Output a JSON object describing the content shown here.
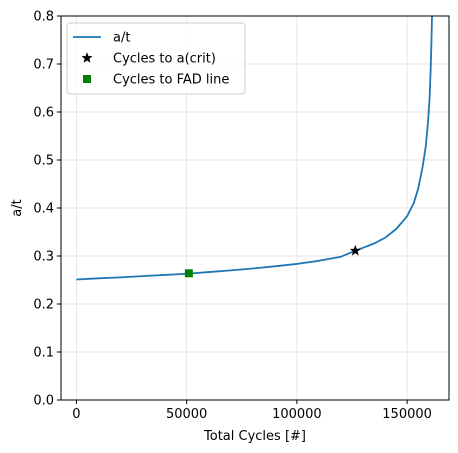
{
  "chart_data": {
    "type": "line",
    "title": "",
    "xlabel": "Total Cycles [#]",
    "ylabel": "a/t",
    "xlim": [
      -7000,
      169000
    ],
    "ylim": [
      0.0,
      0.8
    ],
    "xticks": [
      0,
      50000,
      100000,
      150000
    ],
    "xtick_labels": [
      "0",
      "50000",
      "100000",
      "150000"
    ],
    "yticks": [
      0.0,
      0.1,
      0.2,
      0.3,
      0.4,
      0.5,
      0.6,
      0.7,
      0.8
    ],
    "ytick_labels": [
      "0.0",
      "0.1",
      "0.2",
      "0.3",
      "0.4",
      "0.5",
      "0.6",
      "0.7",
      "0.8"
    ],
    "grid": true,
    "legend_position": "top-left",
    "series": [
      {
        "name": "a/t",
        "kind": "line",
        "color": "#1f77b4",
        "x": [
          0,
          10000,
          20000,
          30000,
          40000,
          50000,
          60000,
          70000,
          80000,
          90000,
          100000,
          110000,
          120000,
          126500,
          130000,
          135000,
          140000,
          145000,
          150000,
          153000,
          155000,
          157000,
          158500,
          159500,
          160200,
          160700,
          161000,
          161200,
          161300
        ],
        "y": [
          0.251,
          0.2535,
          0.2555,
          0.258,
          0.2605,
          0.263,
          0.2665,
          0.27,
          0.274,
          0.2785,
          0.2835,
          0.29,
          0.2985,
          0.311,
          0.317,
          0.326,
          0.338,
          0.356,
          0.383,
          0.41,
          0.44,
          0.485,
          0.53,
          0.58,
          0.63,
          0.69,
          0.74,
          0.78,
          0.8
        ]
      },
      {
        "name": "Cycles to a(crit)",
        "kind": "marker",
        "marker": "star",
        "color": "#000000",
        "x": [
          126500
        ],
        "y": [
          0.311
        ]
      },
      {
        "name": "Cycles to FAD line",
        "kind": "marker",
        "marker": "square",
        "color": "#008000",
        "x": [
          51000
        ],
        "y": [
          0.264
        ]
      }
    ]
  }
}
